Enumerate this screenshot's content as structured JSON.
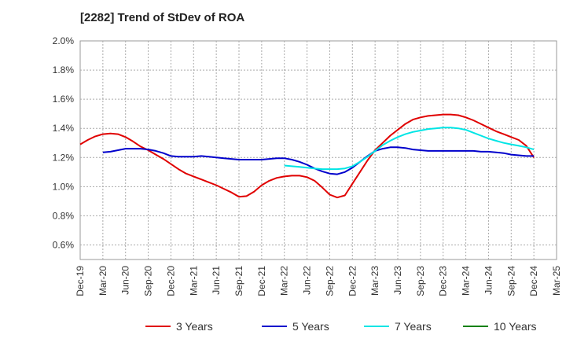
{
  "chart_data": {
    "type": "line",
    "title": "[2282]  Trend of StDev of ROA",
    "xlabel": "",
    "ylabel": "",
    "ylim": [
      0.5,
      2.0
    ],
    "y_ticks": [
      "2.0%",
      "1.8%",
      "1.6%",
      "1.4%",
      "1.2%",
      "1.0%",
      "0.8%",
      "0.6%"
    ],
    "y_tick_values": [
      2.0,
      1.8,
      1.6,
      1.4,
      1.2,
      1.0,
      0.8,
      0.6
    ],
    "x_ticks": [
      "Dec-19",
      "Mar-20",
      "Jun-20",
      "Sep-20",
      "Dec-20",
      "Mar-21",
      "Jun-21",
      "Sep-21",
      "Dec-21",
      "Mar-22",
      "Jun-22",
      "Sep-22",
      "Dec-22",
      "Mar-23",
      "Jun-23",
      "Sep-23",
      "Dec-23",
      "Mar-24",
      "Jun-24",
      "Sep-24",
      "Dec-24",
      "Mar-25"
    ],
    "grid": true,
    "legend_position": "bottom",
    "series": [
      {
        "name": "3 Years",
        "color": "#e00000",
        "x": [
          "Dec-19",
          "Jan-20",
          "Feb-20",
          "Mar-20",
          "Apr-20",
          "May-20",
          "Jun-20",
          "Jul-20",
          "Aug-20",
          "Sep-20",
          "Oct-20",
          "Nov-20",
          "Dec-20",
          "Jan-21",
          "Feb-21",
          "Mar-21",
          "Apr-21",
          "May-21",
          "Jun-21",
          "Jul-21",
          "Aug-21",
          "Sep-21",
          "Oct-21",
          "Nov-21",
          "Dec-21",
          "Jan-22",
          "Feb-22",
          "Mar-22",
          "Apr-22",
          "May-22",
          "Jun-22",
          "Jul-22",
          "Aug-22",
          "Sep-22",
          "Oct-22",
          "Nov-22",
          "Dec-22",
          "Jan-23",
          "Feb-23",
          "Mar-23",
          "Apr-23",
          "May-23",
          "Jun-23",
          "Jul-23",
          "Aug-23",
          "Sep-23",
          "Oct-23",
          "Nov-23",
          "Dec-23",
          "Jan-24",
          "Feb-24",
          "Mar-24",
          "Apr-24",
          "May-24",
          "Jun-24",
          "Jul-24",
          "Aug-24",
          "Sep-24",
          "Oct-24",
          "Nov-24",
          "Dec-24"
        ],
        "values": [
          1.29,
          1.32,
          1.345,
          1.36,
          1.365,
          1.36,
          1.34,
          1.31,
          1.275,
          1.25,
          1.22,
          1.19,
          1.155,
          1.12,
          1.09,
          1.07,
          1.05,
          1.03,
          1.01,
          0.985,
          0.96,
          0.93,
          0.935,
          0.965,
          1.01,
          1.04,
          1.06,
          1.07,
          1.075,
          1.075,
          1.065,
          1.04,
          0.995,
          0.945,
          0.925,
          0.94,
          1.02,
          1.1,
          1.18,
          1.25,
          1.3,
          1.35,
          1.39,
          1.43,
          1.46,
          1.475,
          1.485,
          1.49,
          1.495,
          1.495,
          1.49,
          1.475,
          1.455,
          1.43,
          1.405,
          1.38,
          1.36,
          1.34,
          1.32,
          1.28,
          1.2
        ]
      },
      {
        "name": "5 Years",
        "color": "#0000cc",
        "x": [
          "Dec-19",
          "Jan-20",
          "Feb-20",
          "Mar-20",
          "Apr-20",
          "May-20",
          "Jun-20",
          "Jul-20",
          "Aug-20",
          "Sep-20",
          "Oct-20",
          "Nov-20",
          "Dec-20",
          "Jan-21",
          "Feb-21",
          "Mar-21",
          "Apr-21",
          "May-21",
          "Jun-21",
          "Jul-21",
          "Aug-21",
          "Sep-21",
          "Oct-21",
          "Nov-21",
          "Dec-21",
          "Jan-22",
          "Feb-22",
          "Mar-22",
          "Apr-22",
          "May-22",
          "Jun-22",
          "Jul-22",
          "Aug-22",
          "Sep-22",
          "Oct-22",
          "Nov-22",
          "Dec-22",
          "Jan-23",
          "Feb-23",
          "Mar-23",
          "Apr-23",
          "May-23",
          "Jun-23",
          "Jul-23",
          "Aug-23",
          "Sep-23",
          "Oct-23",
          "Nov-23",
          "Dec-23",
          "Jan-24",
          "Feb-24",
          "Mar-24",
          "Apr-24",
          "May-24",
          "Jun-24",
          "Jul-24",
          "Aug-24",
          "Sep-24",
          "Oct-24",
          "Nov-24",
          "Dec-24"
        ],
        "values": [
          null,
          null,
          null,
          1.235,
          1.24,
          1.25,
          1.26,
          1.26,
          1.26,
          1.255,
          1.245,
          1.23,
          1.21,
          1.205,
          1.205,
          1.205,
          1.21,
          1.205,
          1.2,
          1.195,
          1.19,
          1.185,
          1.185,
          1.185,
          1.185,
          1.19,
          1.195,
          1.195,
          1.185,
          1.17,
          1.15,
          1.125,
          1.105,
          1.09,
          1.085,
          1.1,
          1.13,
          1.17,
          1.21,
          1.245,
          1.26,
          1.27,
          1.27,
          1.265,
          1.255,
          1.25,
          1.245,
          1.245,
          1.245,
          1.245,
          1.245,
          1.245,
          1.245,
          1.24,
          1.24,
          1.235,
          1.23,
          1.22,
          1.215,
          1.21,
          1.21
        ]
      },
      {
        "name": "7 Years",
        "color": "#00e5e5",
        "x": [
          "Mar-22",
          "Apr-22",
          "May-22",
          "Jun-22",
          "Jul-22",
          "Aug-22",
          "Sep-22",
          "Oct-22",
          "Nov-22",
          "Dec-22",
          "Jan-23",
          "Feb-23",
          "Mar-23",
          "Apr-23",
          "May-23",
          "Jun-23",
          "Jul-23",
          "Aug-23",
          "Sep-23",
          "Oct-23",
          "Nov-23",
          "Dec-23",
          "Jan-24",
          "Feb-24",
          "Mar-24",
          "Apr-24",
          "May-24",
          "Jun-24",
          "Jul-24",
          "Aug-24",
          "Sep-24",
          "Oct-24",
          "Nov-24",
          "Dec-24"
        ],
        "values": [
          1.145,
          1.14,
          1.135,
          1.13,
          1.125,
          1.12,
          1.12,
          1.12,
          1.125,
          1.14,
          1.17,
          1.205,
          1.245,
          1.285,
          1.315,
          1.34,
          1.36,
          1.375,
          1.385,
          1.395,
          1.4,
          1.405,
          1.405,
          1.4,
          1.39,
          1.37,
          1.35,
          1.33,
          1.315,
          1.3,
          1.29,
          1.28,
          1.27,
          1.255
        ]
      },
      {
        "name": "10 Years",
        "color": "#008000",
        "x": [],
        "values": []
      }
    ]
  }
}
